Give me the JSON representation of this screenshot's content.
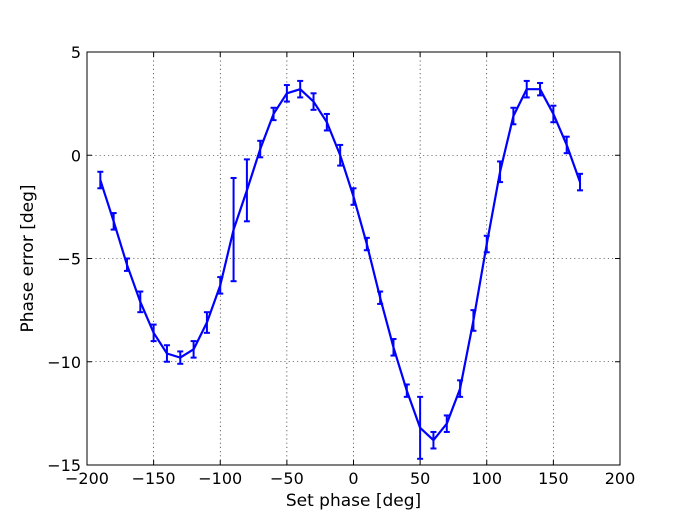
{
  "chart_data": {
    "type": "line",
    "xlabel": "Set phase [deg]",
    "ylabel": "Phase error [deg]",
    "xlim": [
      -200,
      200
    ],
    "ylim": [
      -15,
      5
    ],
    "xticks": [
      -200,
      -150,
      -100,
      -50,
      0,
      50,
      100,
      150,
      200
    ],
    "yticks": [
      5,
      0,
      -5,
      -10,
      -15
    ],
    "xtick_labels": [
      "−200",
      "−150",
      "−100",
      "−50",
      "0",
      "50",
      "100",
      "150",
      "200"
    ],
    "ytick_labels": [
      "5",
      "0",
      "−5",
      "−10",
      "−15"
    ],
    "grid": true,
    "series": [
      {
        "color": "#0000ff",
        "x": [
          -190,
          -180,
          -170,
          -160,
          -150,
          -140,
          -130,
          -120,
          -110,
          -100,
          -90,
          -80,
          -70,
          -60,
          -50,
          -40,
          -30,
          -20,
          -10,
          0,
          10,
          20,
          30,
          40,
          50,
          60,
          70,
          80,
          90,
          100,
          110,
          120,
          130,
          140,
          150,
          160,
          170
        ],
        "y": [
          -1.2,
          -3.2,
          -5.3,
          -7.1,
          -8.6,
          -9.6,
          -9.8,
          -9.4,
          -8.1,
          -6.3,
          -3.6,
          -1.7,
          0.3,
          2.0,
          3.0,
          3.2,
          2.6,
          1.6,
          0.0,
          -2.0,
          -4.3,
          -6.9,
          -9.3,
          -11.4,
          -13.2,
          -13.8,
          -13.0,
          -11.3,
          -8.0,
          -4.3,
          -0.8,
          1.9,
          3.2,
          3.2,
          2.0,
          0.5,
          -1.3
        ],
        "err": [
          0.4,
          0.4,
          0.3,
          0.5,
          0.4,
          0.4,
          0.3,
          0.4,
          0.5,
          0.4,
          2.5,
          1.5,
          0.4,
          0.3,
          0.4,
          0.4,
          0.4,
          0.4,
          0.5,
          0.4,
          0.3,
          0.3,
          0.4,
          0.3,
          1.5,
          0.4,
          0.4,
          0.4,
          0.5,
          0.4,
          0.5,
          0.4,
          0.4,
          0.3,
          0.4,
          0.4,
          0.4
        ]
      }
    ]
  }
}
